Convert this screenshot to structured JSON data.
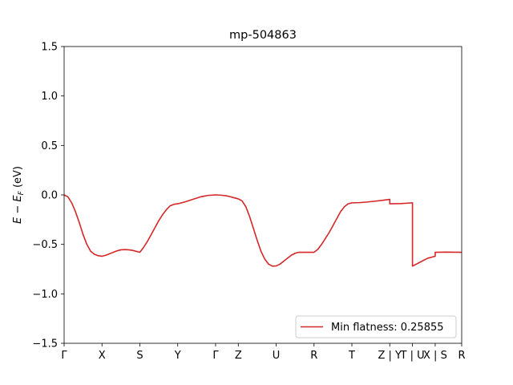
{
  "chart_data": {
    "type": "line",
    "title": "mp-504863",
    "ylabel": "E − E_F (eV)",
    "ylabel_parts": {
      "e": "E",
      "minus": " − ",
      "ef": "E",
      "sub": "F",
      "unit": " (eV)"
    },
    "ylim": [
      -1.5,
      1.5
    ],
    "yticks": [
      1.5,
      1.0,
      0.5,
      0.0,
      -0.5,
      -1.0,
      -1.5
    ],
    "ytick_labels": [
      "1.5",
      "1.0",
      "0.5",
      "0.0",
      "−0.5",
      "−1.0",
      "−1.5"
    ],
    "xlim": [
      0,
      10.5
    ],
    "xticks": [
      {
        "pos": 0.0,
        "label": "Γ"
      },
      {
        "pos": 1.0,
        "label": "X"
      },
      {
        "pos": 2.0,
        "label": "S"
      },
      {
        "pos": 3.0,
        "label": "Y"
      },
      {
        "pos": 4.0,
        "label": "Γ"
      },
      {
        "pos": 4.6,
        "label": "Z"
      },
      {
        "pos": 5.6,
        "label": "U"
      },
      {
        "pos": 6.6,
        "label": "R"
      },
      {
        "pos": 7.6,
        "label": "T"
      },
      {
        "pos": 8.6,
        "label": "Z | Y"
      },
      {
        "pos": 9.2,
        "label": "T | U"
      },
      {
        "pos": 9.8,
        "label": "X | S"
      },
      {
        "pos": 10.5,
        "label": "R"
      }
    ],
    "grid": false,
    "legend_position": "lower-right",
    "series": [
      {
        "name": "Min flatness: 0.25855",
        "color": "#d62728",
        "x": [
          0.0,
          0.1,
          0.2,
          0.3,
          0.4,
          0.5,
          0.6,
          0.7,
          0.8,
          0.9,
          1.0,
          1.1,
          1.2,
          1.3,
          1.4,
          1.5,
          1.6,
          1.7,
          1.8,
          1.9,
          2.0,
          2.1,
          2.2,
          2.3,
          2.4,
          2.5,
          2.6,
          2.7,
          2.8,
          2.9,
          3.0,
          3.2,
          3.4,
          3.6,
          3.8,
          4.0,
          4.15,
          4.3,
          4.45,
          4.6,
          4.7,
          4.8,
          4.9,
          5.0,
          5.1,
          5.2,
          5.3,
          5.4,
          5.5,
          5.6,
          5.7,
          5.8,
          5.9,
          6.0,
          6.1,
          6.2,
          6.3,
          6.4,
          6.5,
          6.6,
          6.7,
          6.8,
          6.9,
          7.0,
          7.1,
          7.2,
          7.3,
          7.4,
          7.5,
          7.6,
          7.8,
          8.0,
          8.2,
          8.4,
          8.6,
          8.6,
          8.9,
          9.2,
          9.2,
          9.4,
          9.6,
          9.8,
          9.8,
          10.1,
          10.5
        ],
        "y": [
          0.0,
          -0.02,
          -0.08,
          -0.17,
          -0.28,
          -0.4,
          -0.5,
          -0.57,
          -0.6,
          -0.615,
          -0.62,
          -0.61,
          -0.595,
          -0.58,
          -0.565,
          -0.555,
          -0.553,
          -0.555,
          -0.56,
          -0.57,
          -0.58,
          -0.53,
          -0.47,
          -0.4,
          -0.33,
          -0.26,
          -0.2,
          -0.15,
          -0.11,
          -0.095,
          -0.09,
          -0.07,
          -0.045,
          -0.02,
          -0.005,
          0.0,
          -0.003,
          -0.01,
          -0.025,
          -0.04,
          -0.06,
          -0.12,
          -0.22,
          -0.34,
          -0.46,
          -0.57,
          -0.65,
          -0.7,
          -0.72,
          -0.718,
          -0.7,
          -0.67,
          -0.64,
          -0.61,
          -0.59,
          -0.58,
          -0.58,
          -0.58,
          -0.58,
          -0.58,
          -0.55,
          -0.5,
          -0.44,
          -0.38,
          -0.31,
          -0.24,
          -0.17,
          -0.12,
          -0.09,
          -0.08,
          -0.078,
          -0.072,
          -0.064,
          -0.055,
          -0.045,
          -0.09,
          -0.088,
          -0.08,
          -0.72,
          -0.68,
          -0.64,
          -0.62,
          -0.58,
          -0.578,
          -0.58
        ]
      }
    ]
  }
}
